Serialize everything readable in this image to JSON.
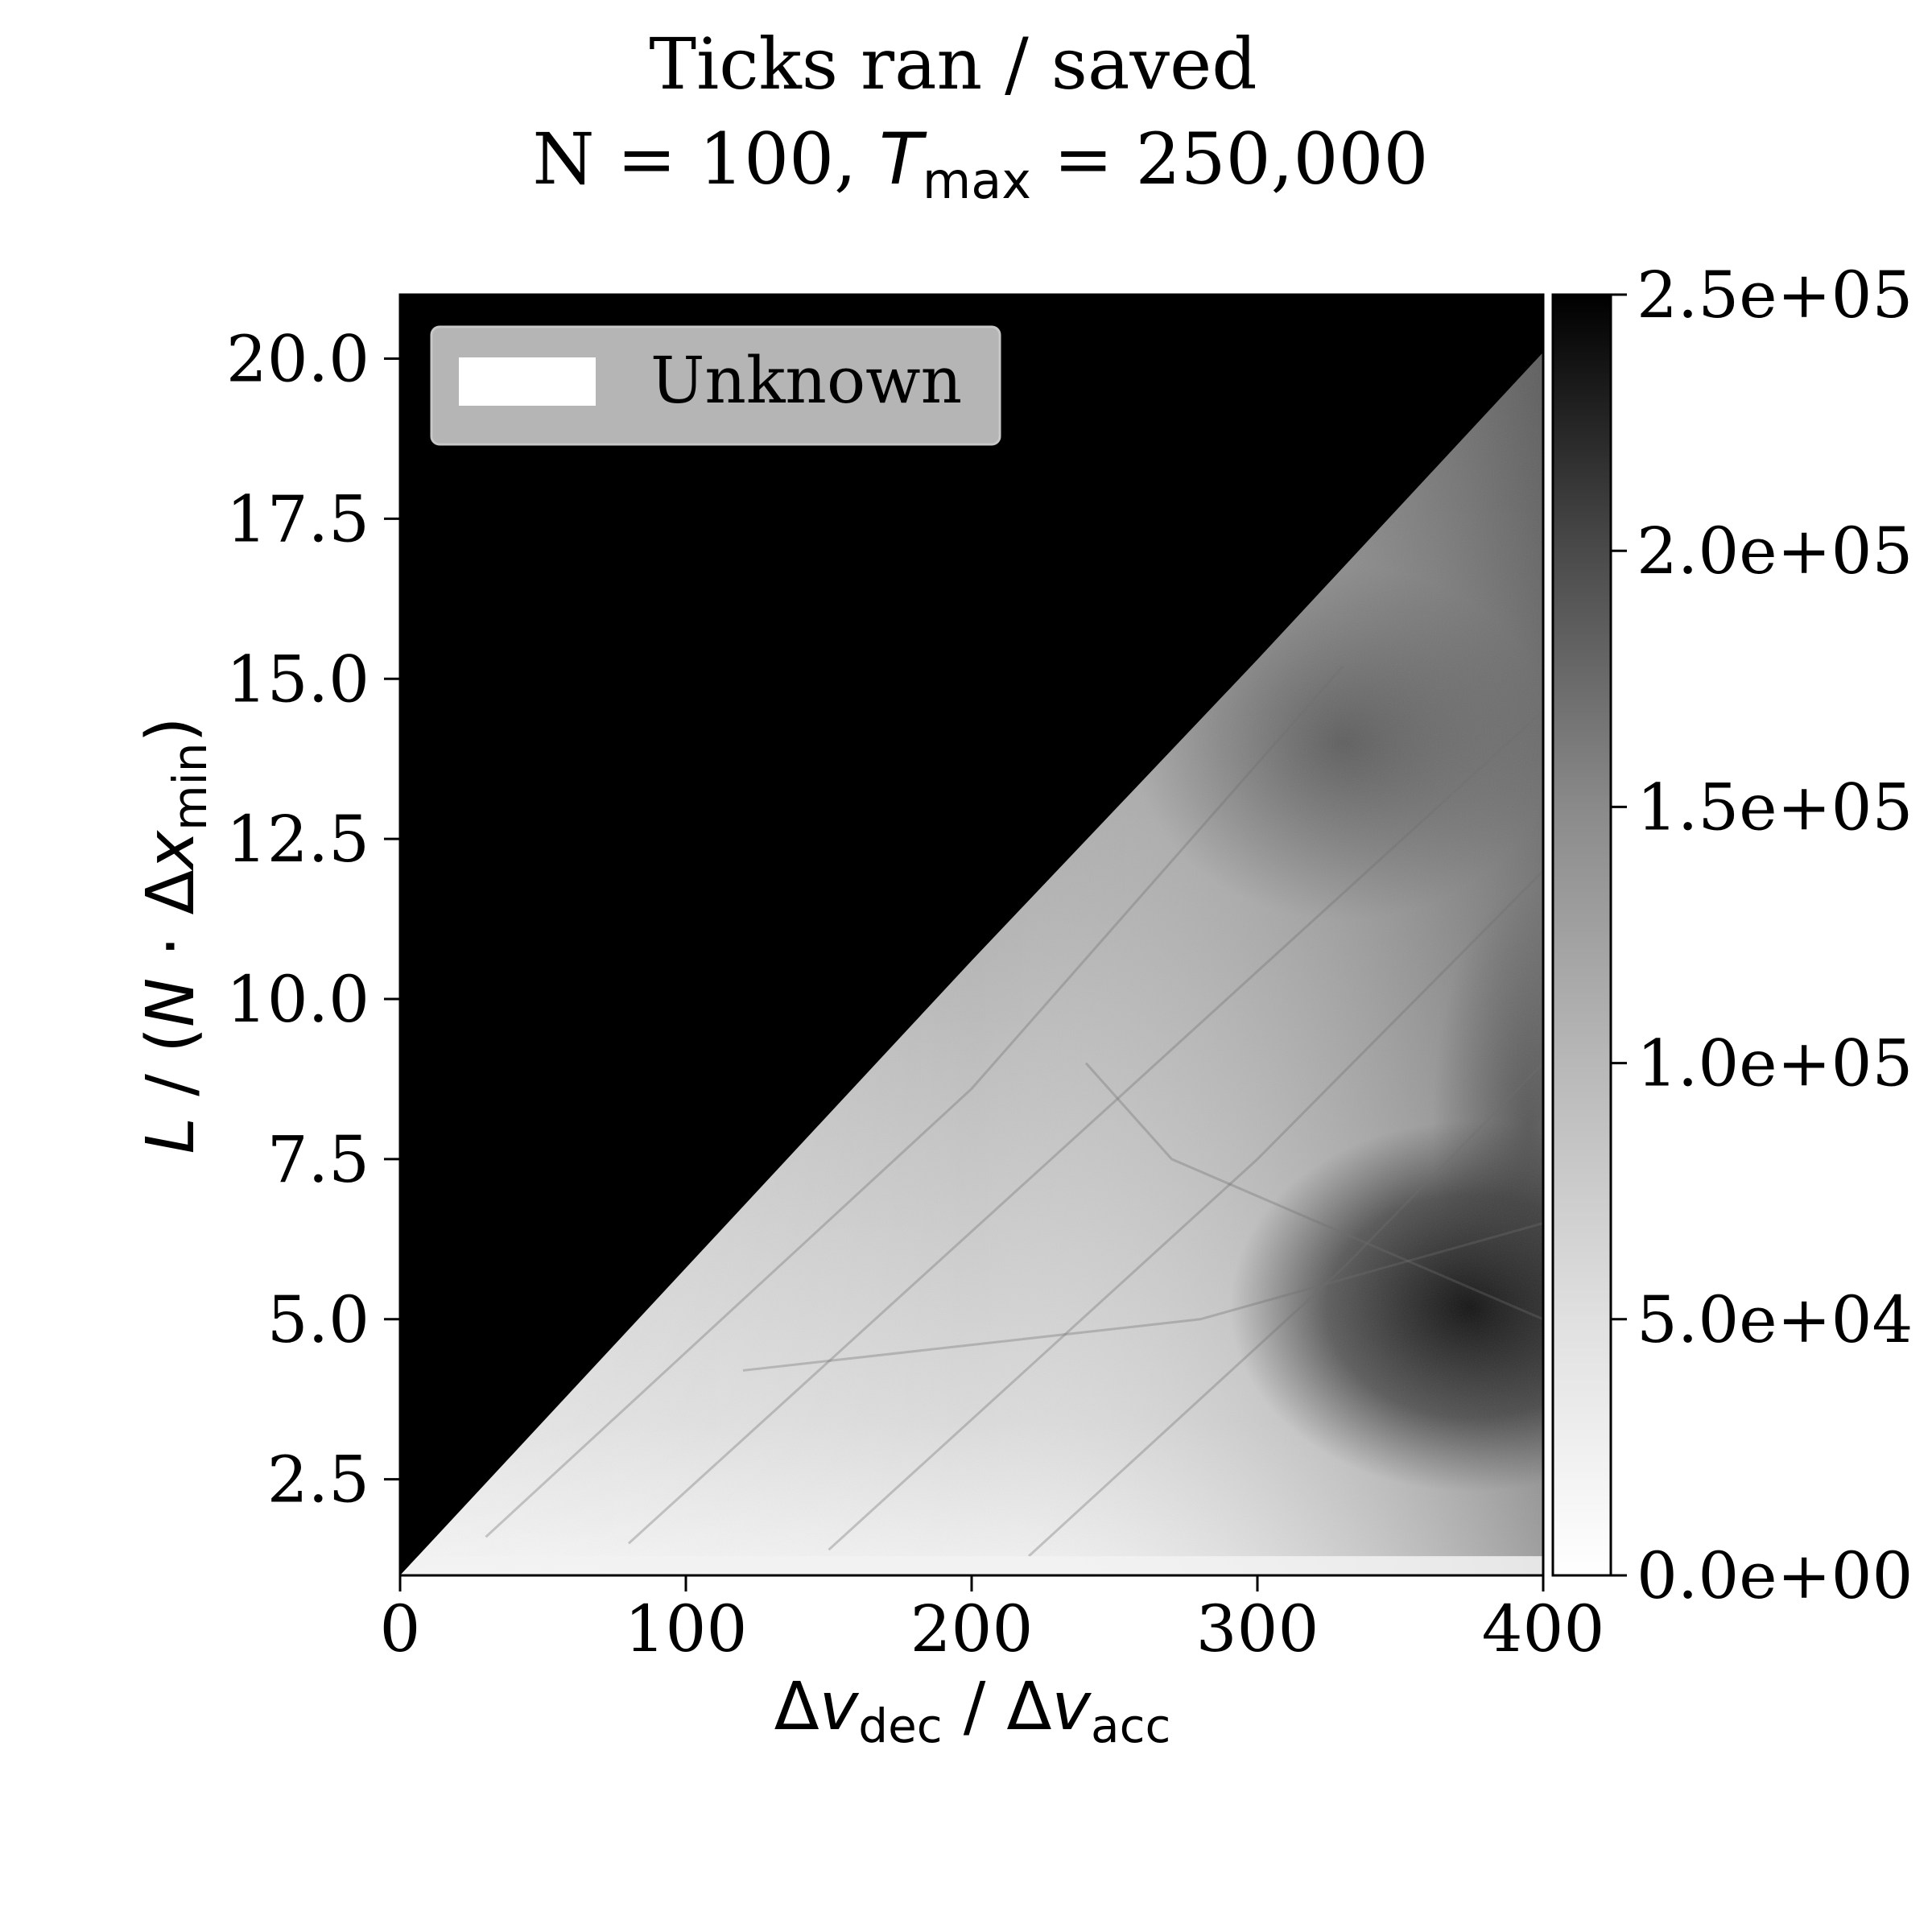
{
  "title": {
    "line1": "Ticks ran / saved",
    "line2_prefix": "N = 100, ",
    "line2_T": "T",
    "line2_sub": "max",
    "line2_suffix": " = 250,000"
  },
  "axes": {
    "xlabel": {
      "d1": "Δ",
      "v1": "v",
      "s1": "dec",
      "mid": " / ",
      "d2": "Δ",
      "v2": "v",
      "s2": "acc"
    },
    "ylabel": {
      "L": "L",
      "mid": " / (",
      "N": "N",
      "dot": " · Δ",
      "x": "x",
      "sub": "min",
      "end": ")"
    }
  },
  "legend": {
    "label": "Unknown",
    "swatch_color": "#ffffff",
    "frame_color": "#b5b5b5"
  },
  "colorbar": {
    "colormap": "gray_r",
    "min": 0,
    "max": 250000,
    "ticks": [
      {
        "value": 0,
        "label": "0.0e+00"
      },
      {
        "value": 50000,
        "label": "5.0e+04"
      },
      {
        "value": 100000,
        "label": "1.0e+05"
      },
      {
        "value": 150000,
        "label": "1.5e+05"
      },
      {
        "value": 200000,
        "label": "2.0e+05"
      },
      {
        "value": 250000,
        "label": "2.5e+05"
      }
    ]
  },
  "chart_data": {
    "type": "heatmap",
    "title": "Ticks ran / saved N = 100, Tmax = 250,000",
    "xlabel": "Δv_dec / Δv_acc",
    "ylabel": "L / (N · Δx_min)",
    "xlim": [
      0,
      400
    ],
    "ylim": [
      1,
      21
    ],
    "xticks": [
      {
        "value": 0,
        "label": "0"
      },
      {
        "value": 100,
        "label": "100"
      },
      {
        "value": 200,
        "label": "200"
      },
      {
        "value": 300,
        "label": "300"
      },
      {
        "value": 400,
        "label": "400"
      }
    ],
    "yticks": [
      {
        "value": 2.5,
        "label": "2.5"
      },
      {
        "value": 5,
        "label": "5.0"
      },
      {
        "value": 7.5,
        "label": "7.5"
      },
      {
        "value": 10,
        "label": "10.0"
      },
      {
        "value": 12.5,
        "label": "12.5"
      },
      {
        "value": 15,
        "label": "15.0"
      },
      {
        "value": 17.5,
        "label": "17.5"
      },
      {
        "value": 20,
        "label": "20.0"
      }
    ],
    "saturated_region": "above boundary L ≈ 1 + x/21 : all values at maximum (250,000)",
    "boundary": [
      [
        0,
        1
      ],
      [
        100,
        5.8
      ],
      [
        200,
        10.6
      ],
      [
        300,
        15.3
      ],
      [
        400,
        20.1
      ]
    ],
    "grid": false,
    "legend_position": "upper-left",
    "value_range": [
      0,
      250000
    ]
  }
}
